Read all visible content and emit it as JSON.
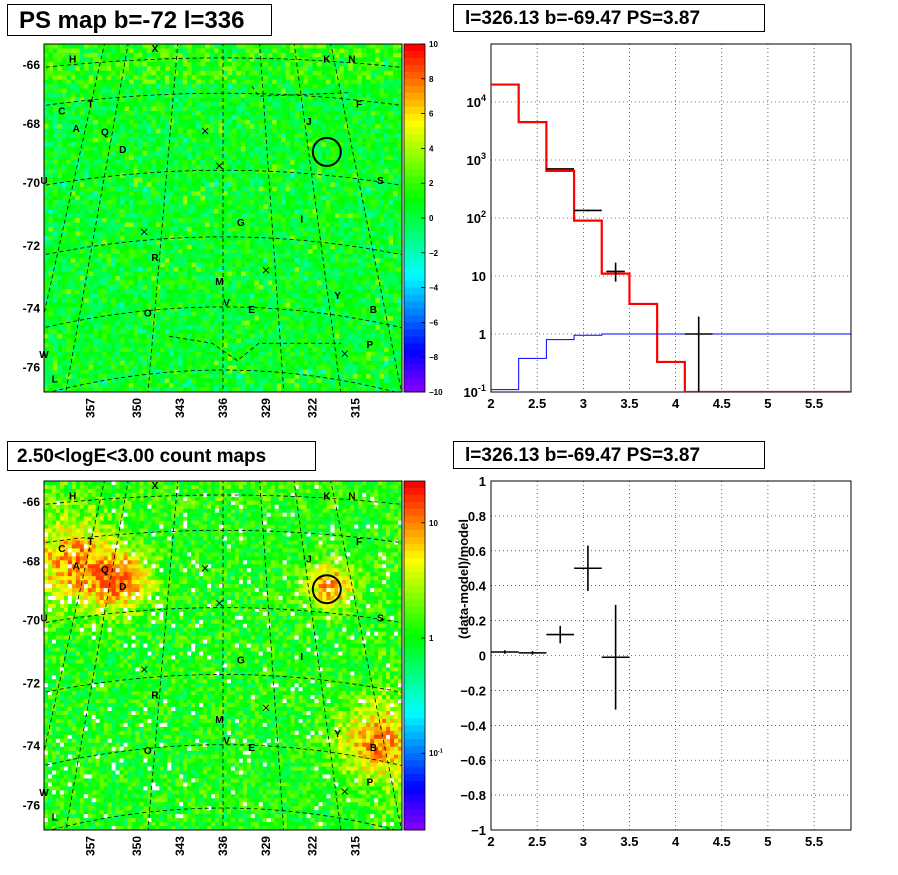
{
  "panels": {
    "top_left_title": "PS map b=-72 l=336",
    "top_right_title": "l=326.13 b=-69.47 PS=3.87",
    "bottom_left_title": "2.50<logE<3.00 count maps",
    "bottom_right_title": "l=326.13 b=-69.47 PS=3.87"
  },
  "chart_data": [
    {
      "type": "heatmap",
      "title": "PS map b=-72 l=336",
      "x_tick_labels": [
        "357",
        "350",
        "343",
        "336",
        "329",
        "322",
        "315"
      ],
      "y_tick_labels": [
        "-66",
        "-68",
        "-70",
        "-72",
        "-74",
        "-76"
      ],
      "colorbar_ticks": [
        "10",
        "8",
        "6",
        "4",
        "2",
        "0",
        "−2",
        "−4",
        "−6",
        "−8",
        "−10"
      ],
      "zlim": [
        -10,
        10
      ],
      "source_labels": [
        "H",
        "X",
        "K",
        "N",
        "C",
        "T",
        "A",
        "Q",
        "D",
        "J",
        "F",
        "U",
        "S",
        "G",
        "I",
        "R",
        "M",
        "V",
        "E",
        "Y",
        "O",
        "B",
        "P",
        "W",
        "L"
      ],
      "circle_label": "J"
    },
    {
      "type": "line",
      "title": "l=326.13 b=-69.47 PS=3.87",
      "xlim": [
        2,
        5.9
      ],
      "ylim": [
        0.1,
        100000
      ],
      "yscale": "log",
      "x_tick_labels": [
        "2",
        "2.5",
        "3",
        "3.5",
        "4",
        "4.5",
        "5",
        "5.5"
      ],
      "y_tick_labels": [
        "10^-1",
        "1",
        "10",
        "10^2",
        "10^3",
        "10^4"
      ],
      "grid": true,
      "series": [
        {
          "kind": "step",
          "color": "#ff0000",
          "edges": [
            2.0,
            2.3,
            2.6,
            2.9,
            3.2,
            3.5,
            3.8,
            4.1,
            4.4,
            5.9
          ],
          "values": [
            20000,
            4500,
            650,
            90,
            11,
            3.3,
            0.33,
            0.1,
            0.1
          ]
        },
        {
          "kind": "step",
          "color": "#0000ff",
          "edges": [
            2.0,
            2.3,
            2.6,
            2.9,
            3.2,
            5.9
          ],
          "values": [
            0.11,
            0.38,
            0.8,
            0.95,
            1.0
          ]
        },
        {
          "kind": "errorbars",
          "color": "#000000",
          "points": [
            {
              "x": 2.75,
              "xerr": 0.15,
              "y": 700,
              "ylo": 690,
              "yhi": 710
            },
            {
              "x": 3.05,
              "xerr": 0.15,
              "y": 135,
              "ylo": 130,
              "yhi": 140
            },
            {
              "x": 3.35,
              "xerr": 0.1,
              "y": 12,
              "ylo": 8,
              "yhi": 17
            },
            {
              "x": 4.25,
              "xerr": 0.15,
              "y": 1.0,
              "ylo": 0.1,
              "yhi": 2.0
            }
          ]
        }
      ]
    },
    {
      "type": "heatmap",
      "title": "2.50<logE<3.00 count maps",
      "x_tick_labels": [
        "357",
        "350",
        "343",
        "336",
        "329",
        "322",
        "315"
      ],
      "y_tick_labels": [
        "-66",
        "-68",
        "-70",
        "-72",
        "-74",
        "-76"
      ],
      "colorbar_ticks": [
        "10",
        "1",
        "10^-1"
      ],
      "zscale": "log",
      "source_labels": [
        "H",
        "X",
        "K",
        "N",
        "C",
        "T",
        "A",
        "Q",
        "D",
        "J",
        "F",
        "U",
        "S",
        "G",
        "I",
        "R",
        "M",
        "V",
        "E",
        "Y",
        "O",
        "B",
        "P",
        "W",
        "L"
      ]
    },
    {
      "type": "scatter",
      "title": "l=326.13 b=-69.47 PS=3.87",
      "ylabel": "(data-model)/model",
      "xlim": [
        2,
        5.9
      ],
      "ylim": [
        -1,
        1
      ],
      "x_tick_labels": [
        "2",
        "2.5",
        "3",
        "3.5",
        "4",
        "4.5",
        "5",
        "5.5"
      ],
      "y_tick_labels": [
        "1",
        "0.8",
        "0.6",
        "0.4",
        "0.2",
        "0",
        "−0.2",
        "−0.4",
        "−0.6",
        "−0.8",
        "−1"
      ],
      "grid": true,
      "points": [
        {
          "x": 2.15,
          "xerr": 0.15,
          "y": 0.02,
          "yerr": 0.01
        },
        {
          "x": 2.45,
          "xerr": 0.15,
          "y": 0.015,
          "yerr": 0.01
        },
        {
          "x": 2.75,
          "xerr": 0.15,
          "y": 0.12,
          "yerr": 0.05
        },
        {
          "x": 3.05,
          "xerr": 0.15,
          "y": 0.5,
          "yerr": 0.13
        },
        {
          "x": 3.35,
          "xerr": 0.15,
          "y": -0.01,
          "yerr": 0.3
        }
      ]
    }
  ]
}
